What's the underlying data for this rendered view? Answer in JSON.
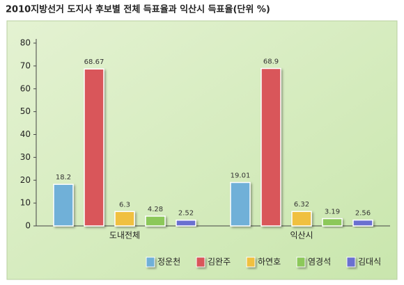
{
  "chart_data": {
    "type": "bar",
    "title": "2010지방선거 도지사 후보별 전체 득표율과 익산시 득표율(단위 %)",
    "categories": [
      "도내전체",
      "익산시"
    ],
    "series": [
      {
        "name": "정운천",
        "color": "#6fb0d8",
        "values": [
          18.2,
          19.01
        ]
      },
      {
        "name": "김완주",
        "color": "#d9575a",
        "values": [
          68.67,
          68.9
        ]
      },
      {
        "name": "하연호",
        "color": "#f0c040",
        "values": [
          6.3,
          6.32
        ]
      },
      {
        "name": "염경석",
        "color": "#8cc85a",
        "values": [
          4.28,
          3.19
        ]
      },
      {
        "name": "김대식",
        "color": "#6a6fd0",
        "values": [
          2.52,
          2.56
        ]
      }
    ],
    "ylim": [
      0,
      80
    ],
    "yticks": [
      0,
      10,
      20,
      30,
      40,
      50,
      60,
      70,
      80
    ],
    "legend": "bottom"
  }
}
